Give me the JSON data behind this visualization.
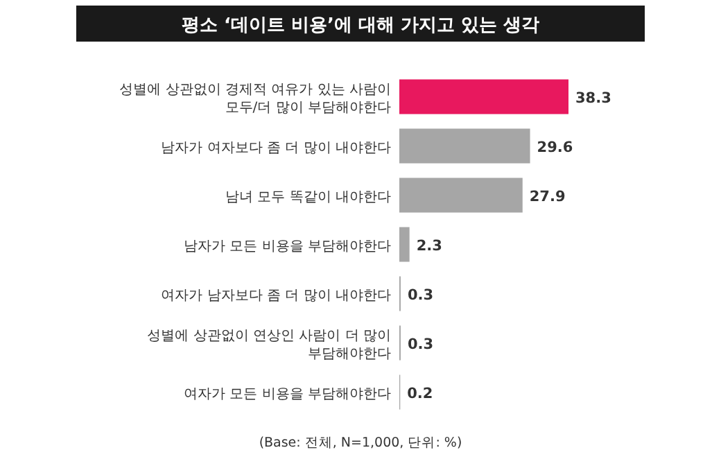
{
  "chart_data": {
    "type": "bar",
    "orientation": "horizontal",
    "title": "평소 ‘데이트 비용’에 대해 가지고 있는 생각",
    "categories": [
      "성별에 상관없이 경제적 여유가 있는 사람이 모두/더 많이 부담해야한다",
      "남자가 여자보다 좀 더 많이 내야한다",
      "남녀 모두 똑같이 내야한다",
      "남자가 모든 비용을 부담해야한다",
      "여자가 남자보다 좀 더 많이 내야한다",
      "성별에 상관없이 연상인 사람이 더 많이 부담해야한다",
      "여자가 모든 비용을 부담해야한다"
    ],
    "values": [
      38.3,
      29.6,
      27.9,
      2.3,
      0.3,
      0.3,
      0.2
    ],
    "colors": [
      "#e8185e",
      "#a6a6a6",
      "#a6a6a6",
      "#a6a6a6",
      "#a6a6a6",
      "#a6a6a6",
      "#a6a6a6"
    ],
    "data_labels": true,
    "annotations": [
      "(Base: 전체, N=1,000, 단위: %)"
    ]
  }
}
